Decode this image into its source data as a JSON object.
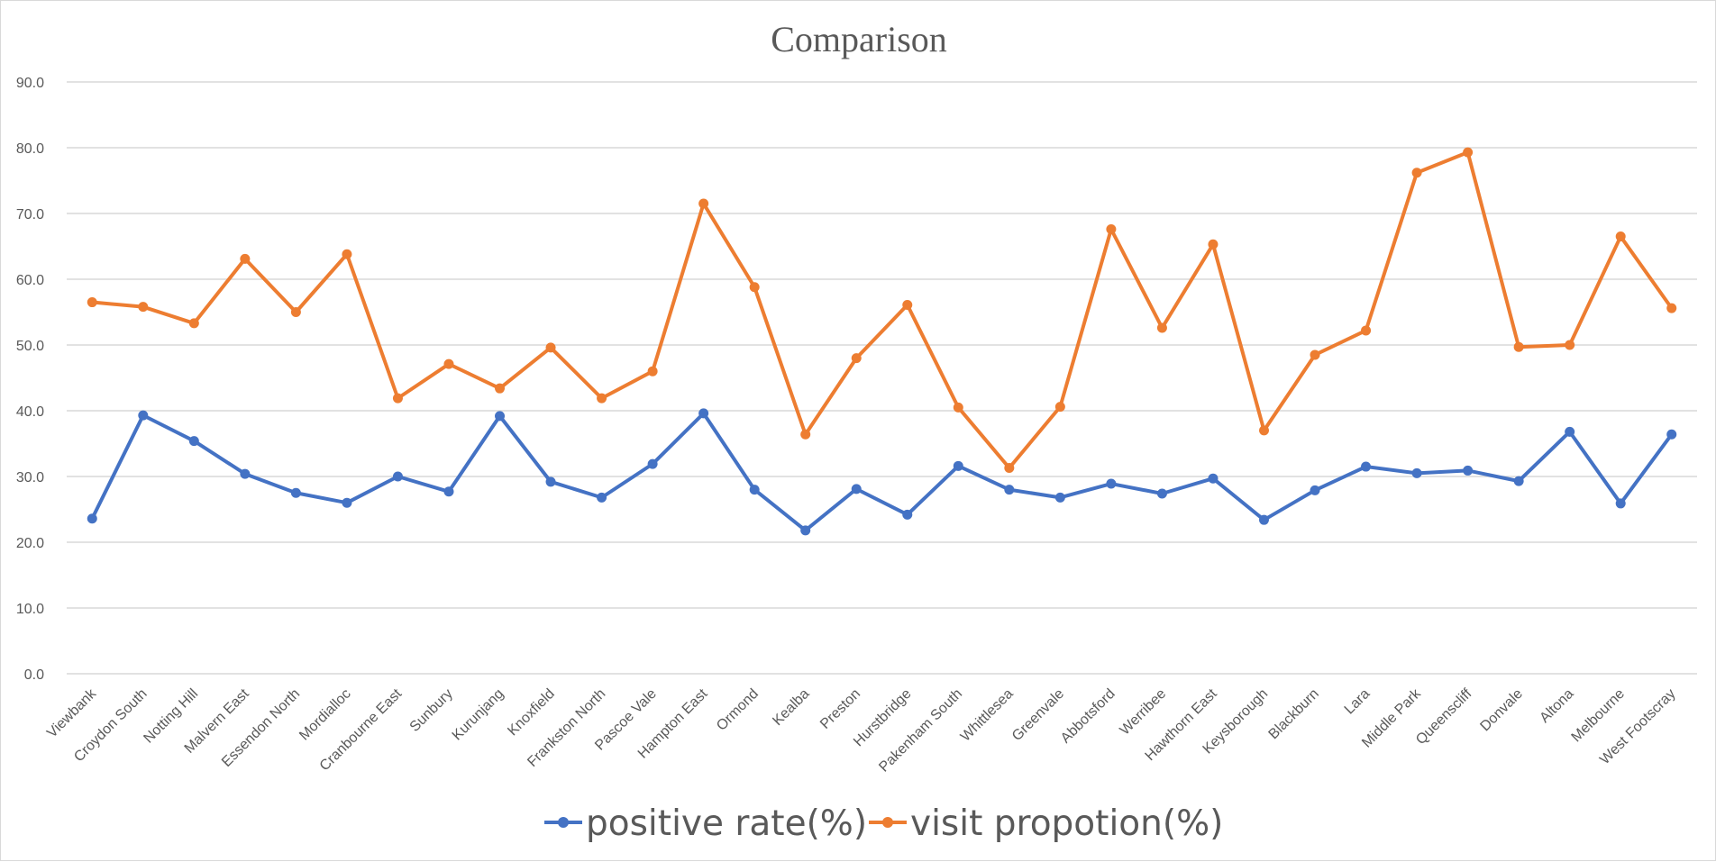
{
  "chart_data": {
    "type": "line",
    "title": "Comparison",
    "xlabel": "",
    "ylabel": "",
    "ylim": [
      0,
      90
    ],
    "y_ticks": [
      "0.0",
      "10.0",
      "20.0",
      "30.0",
      "40.0",
      "50.0",
      "60.0",
      "70.0",
      "80.0",
      "90.0"
    ],
    "grid": true,
    "legend_position": "bottom",
    "categories": [
      "Viewbank",
      "Croydon South",
      "Notting Hill",
      "Malvern East",
      "Essendon North",
      "Mordialloc",
      "Cranbourne East",
      "Sunbury",
      "Kurunjang",
      "Knoxfield",
      "Frankston North",
      "Pascoe Vale",
      "Hampton East",
      "Ormond",
      "Kealba",
      "Preston",
      "Hurstbridge",
      "Pakenham South",
      "Whittlesea",
      "Greenvale",
      "Abbotsford",
      "Werribee",
      "Hawthorn East",
      "Keysborough",
      "Blackburn",
      "Lara",
      "Middle Park",
      "Queenscliff",
      "Donvale",
      "Altona",
      "Melbourne",
      "West Footscray"
    ],
    "series": [
      {
        "name": "positive rate(%)",
        "color": "#4472c4",
        "values": [
          23.6,
          39.3,
          35.4,
          30.4,
          27.5,
          26.0,
          30.0,
          27.7,
          39.2,
          29.2,
          26.8,
          31.9,
          39.6,
          28.0,
          21.8,
          28.1,
          24.2,
          31.6,
          28.0,
          26.8,
          28.9,
          27.4,
          29.7,
          23.4,
          27.9,
          31.5,
          30.5,
          30.9,
          29.3,
          36.8,
          25.9,
          36.4
        ]
      },
      {
        "name": "visit propotion(%)",
        "color": "#ed7d31",
        "values": [
          56.5,
          55.8,
          53.3,
          63.1,
          55.0,
          63.8,
          41.9,
          47.1,
          43.4,
          49.6,
          41.9,
          46.0,
          71.5,
          58.8,
          36.4,
          48.0,
          56.1,
          40.5,
          31.3,
          40.6,
          67.6,
          52.6,
          65.3,
          37.0,
          48.5,
          52.2,
          76.2,
          79.3,
          49.7,
          50.0,
          66.5,
          55.6
        ]
      }
    ]
  }
}
